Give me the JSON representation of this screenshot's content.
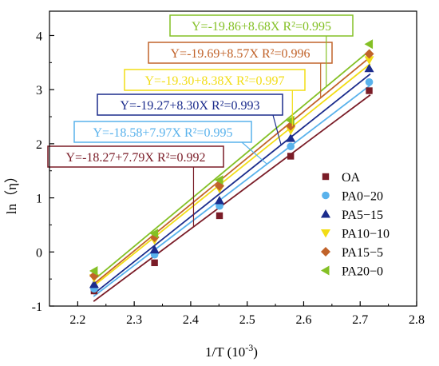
{
  "chart_data": {
    "type": "scatter",
    "xlabel": "1/T (10",
    "xlabel_sup": "-3",
    "xlabel_end": ")",
    "ylabel": "ln（η）",
    "xlim": [
      2.15,
      2.8
    ],
    "ylim": [
      -1,
      4.45
    ],
    "xticks": [
      "2.2",
      "2.3",
      "2.4",
      "2.5",
      "2.6",
      "2.7",
      "2.8"
    ],
    "yticks": [
      "-1",
      "0",
      "1",
      "2",
      "3",
      "4"
    ],
    "legend_position": "right",
    "grid": false,
    "x": [
      2.229,
      2.336,
      2.451,
      2.577,
      2.716
    ],
    "series": [
      {
        "name": "OA",
        "color": "#7a1c27",
        "marker": "square",
        "values": [
          -0.72,
          -0.2,
          0.67,
          1.77,
          2.98
        ],
        "fit": {
          "intercept": -18.27,
          "slope": 7.79
        },
        "equation": "Y=-18.27+7.79X R²=0.992"
      },
      {
        "name": "PA0−20",
        "color": "#59b2ec",
        "marker": "circle",
        "values": [
          -0.68,
          -0.05,
          0.85,
          1.95,
          3.14
        ],
        "fit": {
          "intercept": -18.58,
          "slope": 7.97
        },
        "equation": "Y=-18.58+7.97X R²=0.995"
      },
      {
        "name": "PA5−15",
        "color": "#1b2c8c",
        "marker": "triangle-up",
        "values": [
          -0.6,
          0.04,
          0.95,
          2.1,
          3.39
        ],
        "fit": {
          "intercept": -19.27,
          "slope": 8.3
        },
        "equation": "Y=-19.27+8.30X R²=0.993"
      },
      {
        "name": "PA10−10",
        "color": "#f2dd16",
        "marker": "triangle-down",
        "values": [
          -0.48,
          0.22,
          1.17,
          2.25,
          3.55
        ],
        "fit": {
          "intercept": -19.3,
          "slope": 8.38
        },
        "equation": "Y=-19.30+8.38X R²=0.997"
      },
      {
        "name": "PA15−5",
        "color": "#c1632a",
        "marker": "diamond",
        "values": [
          -0.44,
          0.27,
          1.22,
          2.33,
          3.66
        ],
        "fit": {
          "intercept": -19.69,
          "slope": 8.57
        },
        "equation": "Y=-19.69+8.57X R²=0.996"
      },
      {
        "name": "PA20−0",
        "color": "#84c025",
        "marker": "triangle-left",
        "values": [
          -0.35,
          0.34,
          1.33,
          2.43,
          3.84
        ],
        "fit": {
          "intercept": -19.86,
          "slope": 8.68
        },
        "equation": "Y=-19.86+8.68X R²=0.995"
      }
    ]
  }
}
